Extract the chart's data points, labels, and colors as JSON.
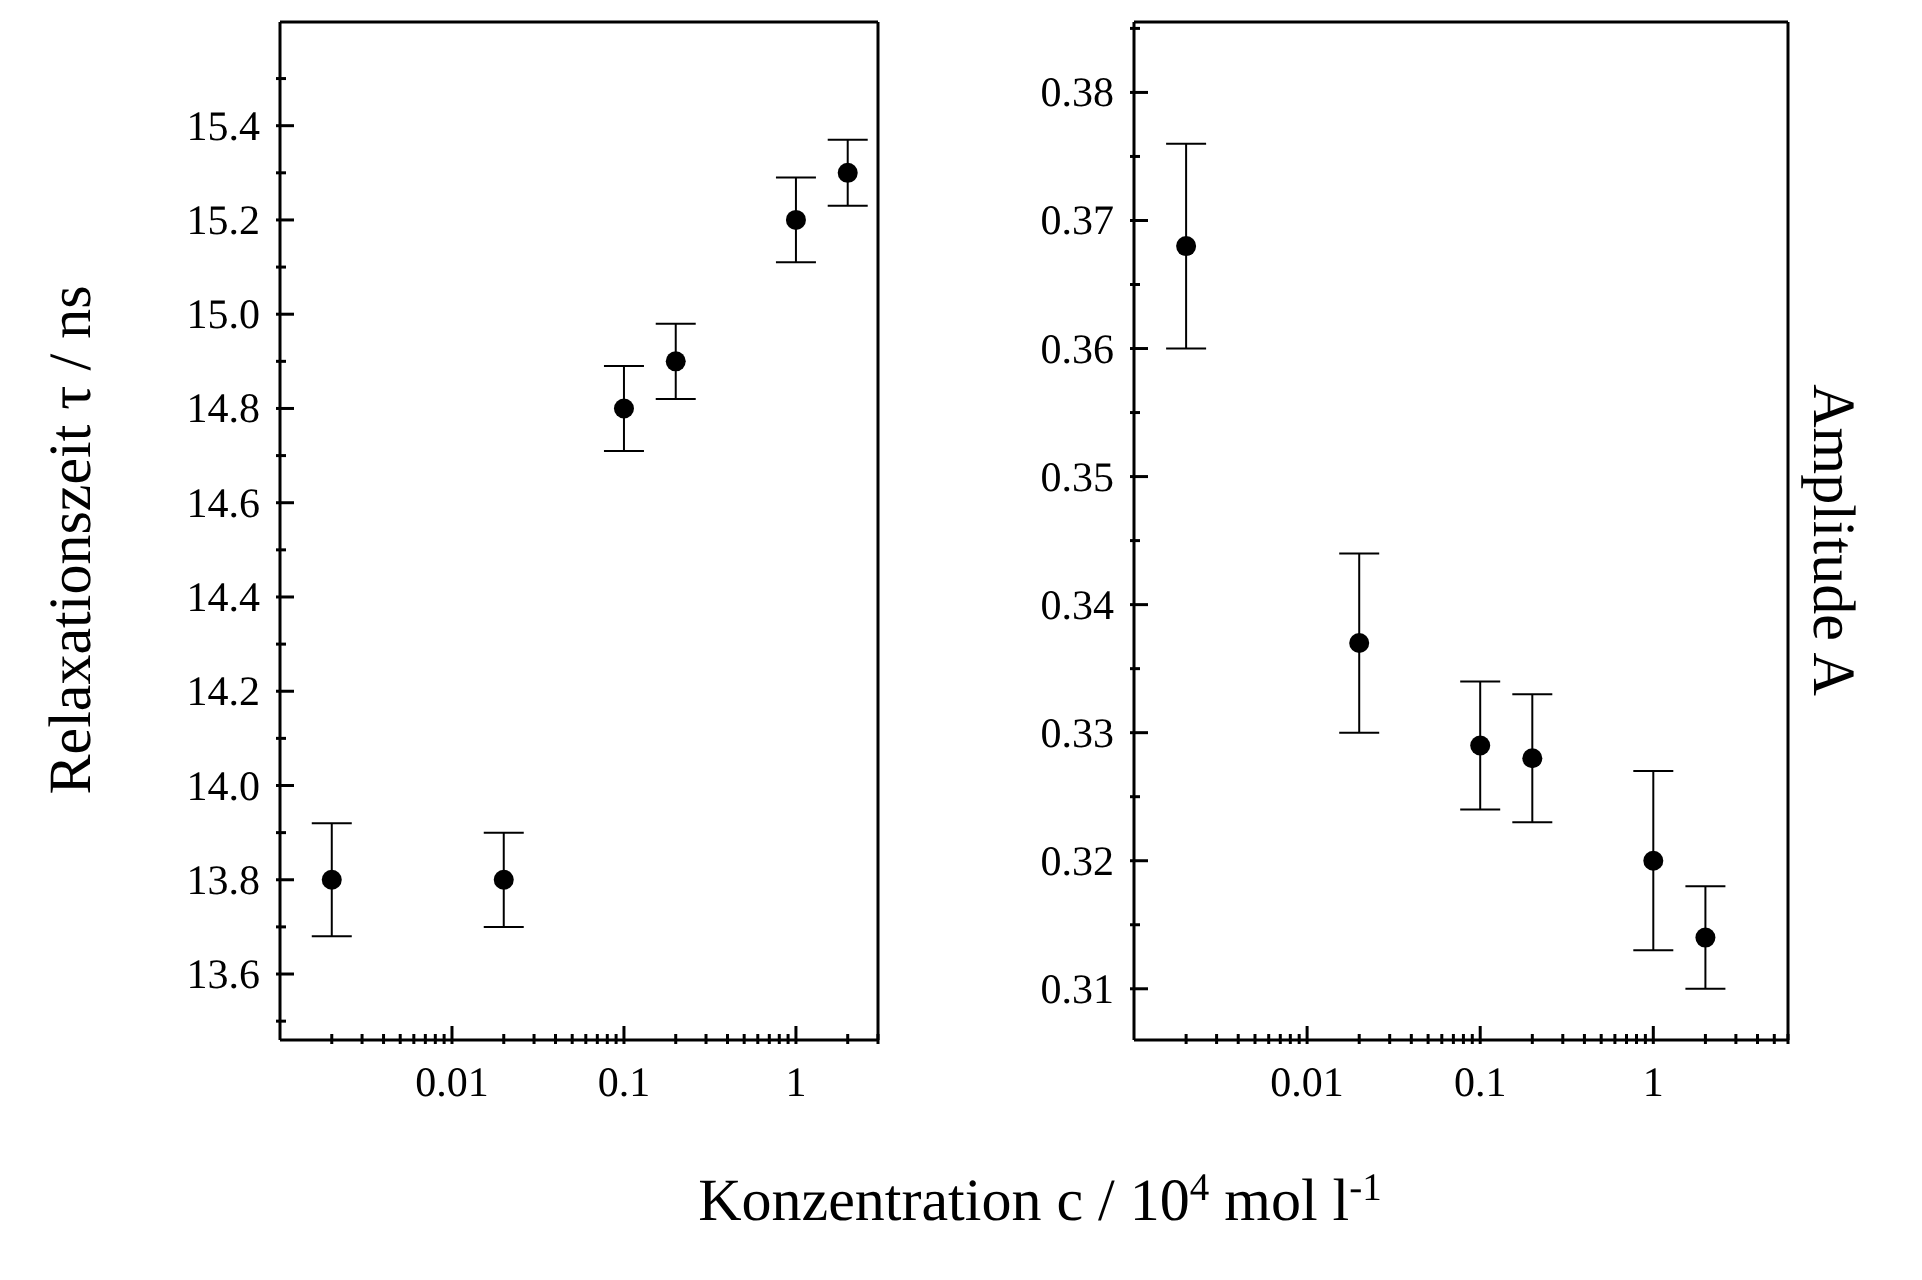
{
  "chart_data": [
    {
      "type": "scatter",
      "xlabel": "Konzentration c / 10$^{4}$ mol l$^{-1}$",
      "ylabel": "Relaxationszeit τ / ns",
      "log": "x",
      "marker": "circle",
      "color": "#000000",
      "x": [
        0.002,
        0.02,
        0.1,
        0.2,
        1,
        2
      ],
      "values": [
        13.8,
        13.8,
        14.8,
        14.9,
        15.2,
        15.3
      ],
      "errors": [
        0.12,
        0.1,
        0.09,
        0.08,
        0.09,
        0.07
      ],
      "xlim": [
        0.001,
        3
      ],
      "xticks": [
        {
          "value": 0.002,
          "label": null
        },
        {
          "value": 0.003,
          "label": null
        },
        {
          "value": 0.004,
          "label": null
        },
        {
          "value": 0.005,
          "label": null
        },
        {
          "value": 0.006,
          "label": null
        },
        {
          "value": 0.007,
          "label": null
        },
        {
          "value": 0.008,
          "label": null
        },
        {
          "value": 0.009,
          "label": null
        },
        0.01,
        {
          "value": 0.02,
          "label": null
        },
        {
          "value": 0.03,
          "label": null
        },
        {
          "value": 0.04,
          "label": null
        },
        {
          "value": 0.05,
          "label": null
        },
        {
          "value": 0.06,
          "label": null
        },
        {
          "value": 0.07,
          "label": null
        },
        {
          "value": 0.08,
          "label": null
        },
        {
          "value": 0.09,
          "label": null
        },
        0.1,
        {
          "value": 0.2,
          "label": null
        },
        {
          "value": 0.3,
          "label": null
        },
        {
          "value": 0.4,
          "label": null
        },
        {
          "value": 0.5,
          "label": null
        },
        {
          "value": 0.6,
          "label": null
        },
        {
          "value": 0.7,
          "label": null
        },
        {
          "value": 0.8,
          "label": null
        },
        {
          "value": 0.9,
          "label": null
        },
        1,
        {
          "value": 2,
          "label": null
        },
        {
          "value": 3,
          "label": null
        }
      ],
      "ylim": [
        13.46,
        15.62
      ],
      "yticks": [
        {
          "value": 13.5,
          "label": null
        },
        {
          "value": 13.6,
          "label": "13.6"
        },
        {
          "value": 13.7,
          "label": null
        },
        {
          "value": 13.8,
          "label": "13.8"
        },
        {
          "value": 13.9,
          "label": null
        },
        {
          "value": 14.0,
          "label": "14.0"
        },
        {
          "value": 14.1,
          "label": null
        },
        {
          "value": 14.2,
          "label": "14.2"
        },
        {
          "value": 14.3,
          "label": null
        },
        {
          "value": 14.4,
          "label": "14.4"
        },
        {
          "value": 14.5,
          "label": null
        },
        {
          "value": 14.6,
          "label": "14.6"
        },
        {
          "value": 14.7,
          "label": null
        },
        {
          "value": 14.8,
          "label": "14.8"
        },
        {
          "value": 14.9,
          "label": null
        },
        {
          "value": 15.0,
          "label": "15.0"
        },
        {
          "value": 15.1,
          "label": null
        },
        {
          "value": 15.2,
          "label": "15.2"
        },
        {
          "value": 15.3,
          "label": null
        },
        {
          "value": 15.4,
          "label": "15.4"
        },
        {
          "value": 15.5,
          "label": null
        }
      ]
    },
    {
      "type": "scatter",
      "ylabel": "Amplitude A",
      "log": "x",
      "marker": "circle",
      "color": "#000000",
      "x": [
        0.002,
        0.02,
        0.1,
        0.2,
        1,
        2
      ],
      "values": [
        0.368,
        0.337,
        0.329,
        0.328,
        0.32,
        0.314
      ],
      "errors": [
        0.008,
        0.007,
        0.005,
        0.005,
        0.007,
        0.004
      ],
      "xlim": [
        0.001,
        6
      ],
      "xticks": [
        {
          "value": 0.002,
          "label": null
        },
        {
          "value": 0.003,
          "label": null
        },
        {
          "value": 0.004,
          "label": null
        },
        {
          "value": 0.005,
          "label": null
        },
        {
          "value": 0.006,
          "label": null
        },
        {
          "value": 0.007,
          "label": null
        },
        {
          "value": 0.008,
          "label": null
        },
        {
          "value": 0.009,
          "label": null
        },
        0.01,
        {
          "value": 0.02,
          "label": null
        },
        {
          "value": 0.03,
          "label": null
        },
        {
          "value": 0.04,
          "label": null
        },
        {
          "value": 0.05,
          "label": null
        },
        {
          "value": 0.06,
          "label": null
        },
        {
          "value": 0.07,
          "label": null
        },
        {
          "value": 0.08,
          "label": null
        },
        {
          "value": 0.09,
          "label": null
        },
        0.1,
        {
          "value": 0.2,
          "label": null
        },
        {
          "value": 0.3,
          "label": null
        },
        {
          "value": 0.4,
          "label": null
        },
        {
          "value": 0.5,
          "label": null
        },
        {
          "value": 0.6,
          "label": null
        },
        {
          "value": 0.7,
          "label": null
        },
        {
          "value": 0.8,
          "label": null
        },
        {
          "value": 0.9,
          "label": null
        },
        1,
        {
          "value": 2,
          "label": null
        },
        {
          "value": 3,
          "label": null
        },
        {
          "value": 4,
          "label": null
        },
        {
          "value": 5,
          "label": null
        },
        {
          "value": 6,
          "label": null
        }
      ],
      "ylim": [
        0.306,
        0.3855
      ],
      "yticks": [
        {
          "value": 0.31,
          "label": "0.31"
        },
        {
          "value": 0.315,
          "label": null
        },
        {
          "value": 0.32,
          "label": "0.32"
        },
        {
          "value": 0.325,
          "label": null
        },
        {
          "value": 0.33,
          "label": "0.33"
        },
        {
          "value": 0.335,
          "label": null
        },
        {
          "value": 0.34,
          "label": "0.34"
        },
        {
          "value": 0.345,
          "label": null
        },
        {
          "value": 0.35,
          "label": "0.35"
        },
        {
          "value": 0.355,
          "label": null
        },
        {
          "value": 0.36,
          "label": "0.36"
        },
        {
          "value": 0.365,
          "label": null
        },
        {
          "value": 0.37,
          "label": "0.37"
        },
        {
          "value": 0.375,
          "label": null
        },
        {
          "value": 0.38,
          "label": "0.38"
        },
        {
          "value": 0.385,
          "label": null
        }
      ]
    }
  ]
}
